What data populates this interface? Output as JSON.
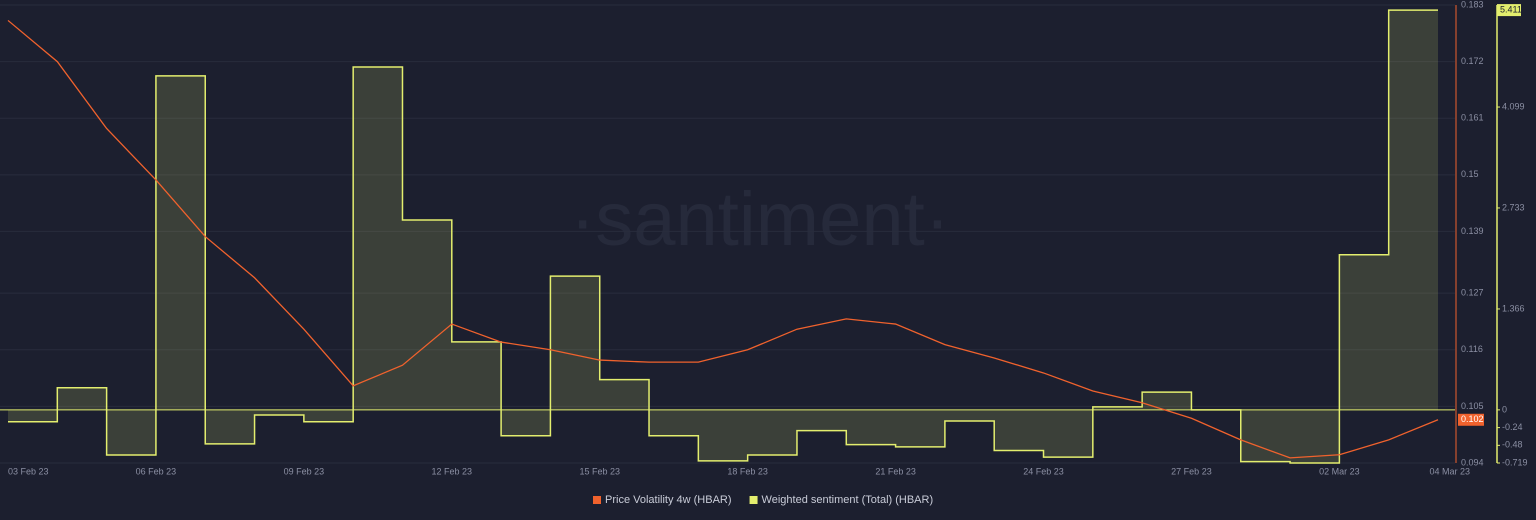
{
  "chart_data": {
    "type": "line",
    "watermark": "·santiment·",
    "categories": [
      "03 Feb 23",
      null,
      null,
      "06 Feb 23",
      null,
      null,
      "09 Feb 23",
      null,
      null,
      "12 Feb 23",
      null,
      null,
      "15 Feb 23",
      null,
      null,
      "18 Feb 23",
      null,
      null,
      "21 Feb 23",
      null,
      null,
      "24 Feb 23",
      null,
      null,
      "27 Feb 23",
      null,
      null,
      "02 Mar 23",
      null,
      "04 Mar 23"
    ],
    "series": [
      {
        "name": "Price Volatility 4w (HBAR)",
        "color": "#f0622d",
        "axis": "y",
        "style": "line",
        "values": [
          0.18,
          0.172,
          0.159,
          0.149,
          0.138,
          0.13,
          0.12,
          0.109,
          0.113,
          0.121,
          0.1175,
          0.116,
          0.114,
          0.1136,
          0.1136,
          0.116,
          0.12,
          0.122,
          0.121,
          0.117,
          0.1144,
          0.1115,
          0.108,
          0.1057,
          0.1027,
          0.0985,
          0.095,
          0.0956,
          0.0985,
          0.1024
        ],
        "value_labels": [
          null,
          null,
          null,
          null,
          null,
          null,
          null,
          null,
          null,
          null,
          null,
          null,
          null,
          null,
          null,
          null,
          null,
          null,
          null,
          null,
          null,
          null,
          null,
          null,
          null,
          null,
          null,
          null,
          null,
          "0.102"
        ]
      },
      {
        "name": "Weighted sentiment (Total) (HBAR)",
        "color": "#e3ee6e",
        "axis": "y2",
        "style": "step-area",
        "values": [
          -0.16,
          0.3,
          -0.61,
          4.52,
          -0.46,
          -0.07,
          -0.16,
          4.64,
          2.57,
          0.92,
          -0.35,
          1.81,
          0.41,
          -0.35,
          -0.69,
          -0.61,
          -0.28,
          -0.47,
          -0.5,
          -0.15,
          -0.55,
          -0.64,
          0.04,
          0.24,
          0,
          -0.7,
          -0.719,
          2.1,
          5.411,
          5.411
        ]
      }
    ],
    "ylim": [
      0.094,
      0.183
    ],
    "yticks": [
      0.094,
      0.105,
      0.116,
      0.127,
      0.139,
      0.15,
      0.161,
      0.172,
      0.183
    ],
    "y2lim": [
      -0.719,
      5.48
    ],
    "y2ticks": [
      -0.719,
      -0.48,
      -0.24,
      0,
      1.366,
      2.733,
      4.099,
      5.411
    ],
    "grid": true,
    "legend": "bottom"
  }
}
